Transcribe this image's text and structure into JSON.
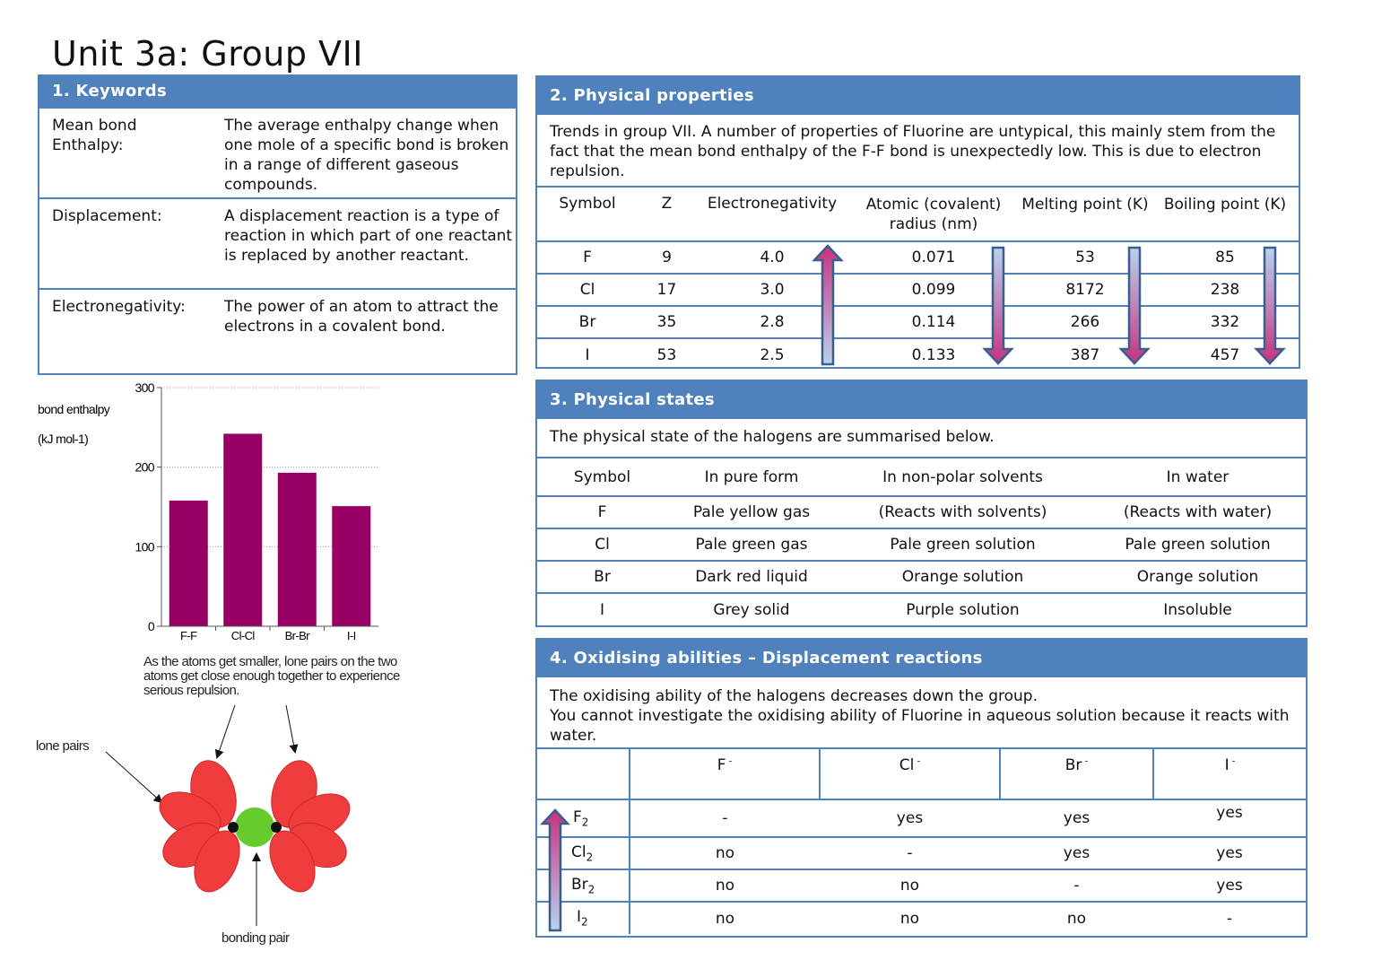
{
  "title": "Unit 3a: Group VII",
  "keywords": {
    "header": "1.   Keywords",
    "items": [
      {
        "term": "Mean bond Enthalpy:",
        "definition": "The average enthalpy change when one mole of a specific bond is broken in a range of different gaseous compounds."
      },
      {
        "term": "Displacement:",
        "definition": "A displacement reaction is a type of reaction in which part of one reactant is replaced by another reactant."
      },
      {
        "term": "Electronegativity:",
        "definition": "The power of an atom to attract the electrons in a covalent bond."
      }
    ]
  },
  "physical_properties": {
    "header": "2. Physical properties",
    "intro": "Trends in group VII. A number of properties of Fluorine are  untypical, this mainly stem from the fact that the mean bond enthalpy of  the F-F bond is unexpectedly low. This is due to electron repulsion.",
    "columns": [
      "Symbol",
      "Z",
      "Electronegativity",
      "Atomic (covalent) radius (nm)",
      "Melting point (K)",
      "Boiling point (K)"
    ],
    "rows": [
      [
        "F",
        "9",
        "4.0",
        "0.071",
        "53",
        "85"
      ],
      [
        "Cl",
        "17",
        "3.0",
        "0.099",
        "8172",
        "238"
      ],
      [
        "Br",
        "35",
        "2.8",
        "0.114",
        "266",
        "332"
      ],
      [
        "I",
        "53",
        "2.5",
        "0.133",
        "387",
        "457"
      ]
    ]
  },
  "physical_states": {
    "header": "3. Physical states",
    "intro": "The physical state of the halogens are summarised below.",
    "columns": [
      "Symbol",
      "In pure form",
      "In non-polar solvents",
      "In water"
    ],
    "rows": [
      [
        "F",
        "Pale yellow gas",
        "(Reacts with solvents)",
        "(Reacts with water)"
      ],
      [
        "Cl",
        "Pale green gas",
        "Pale green solution",
        "Pale green solution"
      ],
      [
        "Br",
        "Dark red liquid",
        "Orange solution",
        "Orange solution"
      ],
      [
        "I",
        "Grey solid",
        "Purple solution",
        "Insoluble"
      ]
    ]
  },
  "oxidising": {
    "header": "4. Oxidising abilities – Displacement reactions",
    "intro": "The oxidising ability of the halogens decreases down the group.\nYou cannot investigate the oxidising ability of Fluorine in aqueous solution because it reacts with water.",
    "columns": [
      "F",
      "Cl",
      "Br",
      "I"
    ],
    "rows": [
      {
        "label": "F",
        "cells": [
          "-",
          "yes",
          "yes",
          "yes"
        ]
      },
      {
        "label": "Cl",
        "cells": [
          "no",
          "-",
          "yes",
          "yes"
        ]
      },
      {
        "label": "Br",
        "cells": [
          "no",
          "no",
          "-",
          "yes"
        ]
      },
      {
        "label": "I",
        "cells": [
          "no",
          "no",
          "no",
          "-"
        ]
      }
    ]
  },
  "chart_data": {
    "type": "bar",
    "categories": [
      "F-F",
      "Cl-Cl",
      "Br-Br",
      "I-I"
    ],
    "values": [
      158,
      242,
      193,
      151
    ],
    "ylabel": "bond enthalpy",
    "yunit": "(kJ mol-1)",
    "ylim": [
      0,
      300
    ],
    "yticks": [
      0,
      100,
      200,
      300
    ],
    "bar_color": "#990066",
    "grid": true
  },
  "chart_caption": "As the atoms get smaller, lone pairs on the two atoms get close enough together to experience serious repulsion.",
  "diagram": {
    "lone_pairs_label": "lone pairs",
    "bonding_pair_label": "bonding pair"
  },
  "colors": {
    "accent": "#4f81bd",
    "bar": "#990066",
    "lobe": "#ee3333",
    "bond": "#66cc33"
  }
}
